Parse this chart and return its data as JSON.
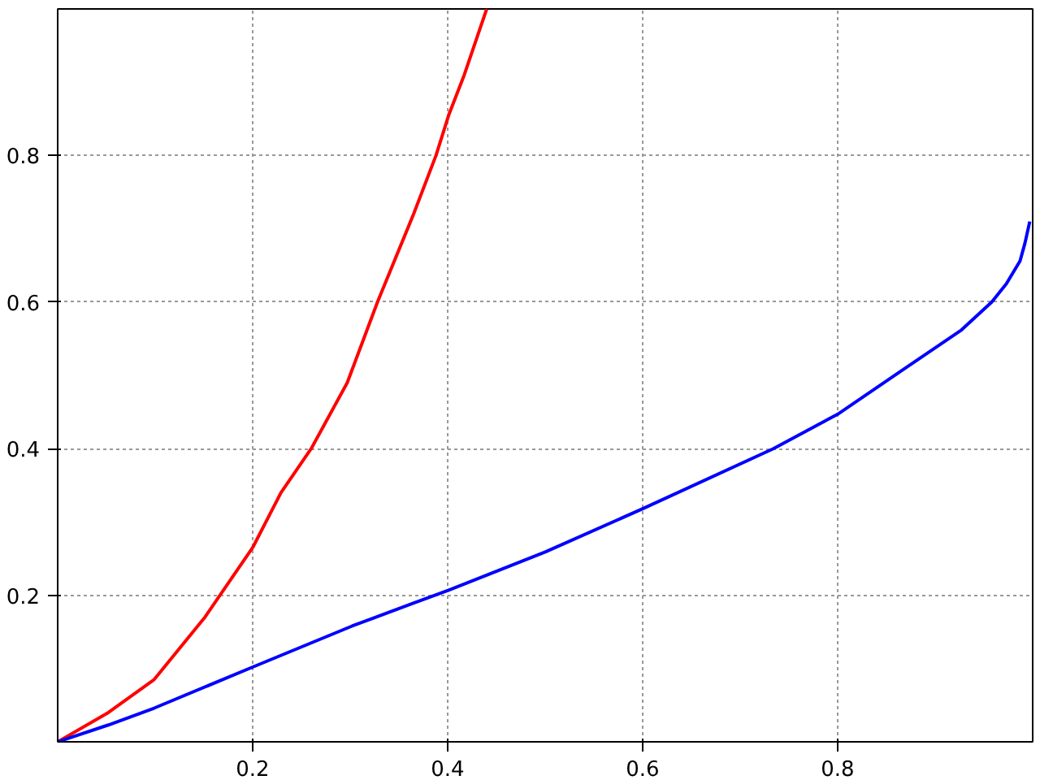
{
  "chart_data": {
    "type": "line",
    "xlim": [
      0,
      1
    ],
    "ylim": [
      0,
      1
    ],
    "xticks": [
      0.2,
      0.4,
      0.6,
      0.8
    ],
    "yticks": [
      0.2,
      0.4,
      0.6,
      0.8
    ],
    "grid": true,
    "line_style": "solid",
    "series": [
      {
        "color": "#ff0000",
        "x": [
          0,
          0.052,
          0.099,
          0.151,
          0.2,
          0.229,
          0.26,
          0.297,
          0.328,
          0.365,
          0.388,
          0.401,
          0.417,
          0.44
        ],
        "values": [
          0,
          0.04,
          0.085,
          0.17,
          0.265,
          0.34,
          0.4,
          0.49,
          0.6,
          0.72,
          0.8,
          0.855,
          0.91,
          1.0
        ]
      },
      {
        "color": "#0000ff",
        "x": [
          0,
          0.052,
          0.099,
          0.2,
          0.302,
          0.401,
          0.5,
          0.6,
          0.734,
          0.8,
          0.865,
          0.927,
          0.958,
          0.973,
          0.987,
          0.992,
          0.997
        ],
        "values": [
          0,
          0.023,
          0.046,
          0.102,
          0.158,
          0.207,
          0.259,
          0.318,
          0.4,
          0.447,
          0.506,
          0.562,
          0.6,
          0.625,
          0.656,
          0.68,
          0.71
        ]
      }
    ]
  }
}
